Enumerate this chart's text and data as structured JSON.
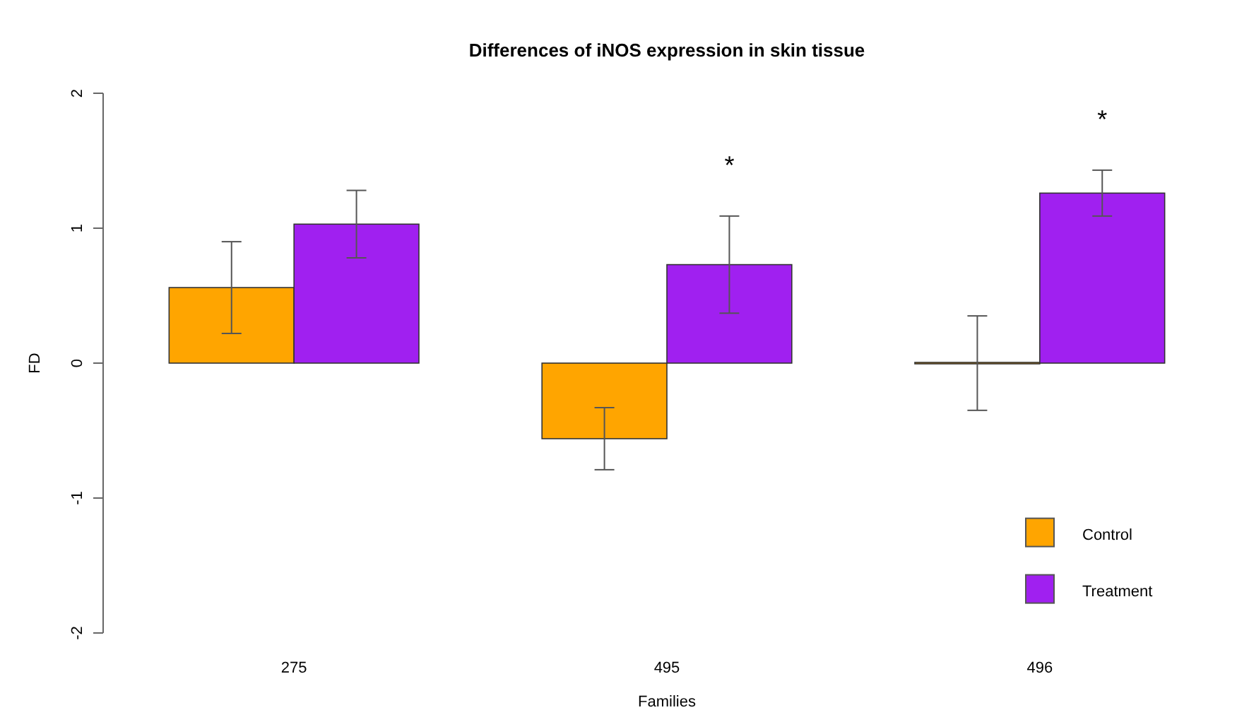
{
  "chart_data": {
    "type": "bar",
    "title": "Differences of iNOS expression in skin tissue",
    "xlabel": "Families",
    "ylabel": "FD",
    "categories": [
      "275",
      "495",
      "496"
    ],
    "series": [
      {
        "name": "Control",
        "color": "#ffa500",
        "values": [
          0.56,
          -0.56,
          0
        ],
        "errors": [
          0.34,
          0.23,
          0.35
        ]
      },
      {
        "name": "Treatment",
        "color": "#a020f0",
        "values": [
          1.03,
          0.73,
          1.26
        ],
        "errors": [
          0.25,
          0.36,
          0.17
        ]
      }
    ],
    "ylim": [
      -2,
      2
    ],
    "yticks": [
      -2,
      -1,
      0,
      1,
      2
    ],
    "grid": false,
    "legend": "bottom right",
    "annotations": [
      "*",
      "*"
    ]
  }
}
